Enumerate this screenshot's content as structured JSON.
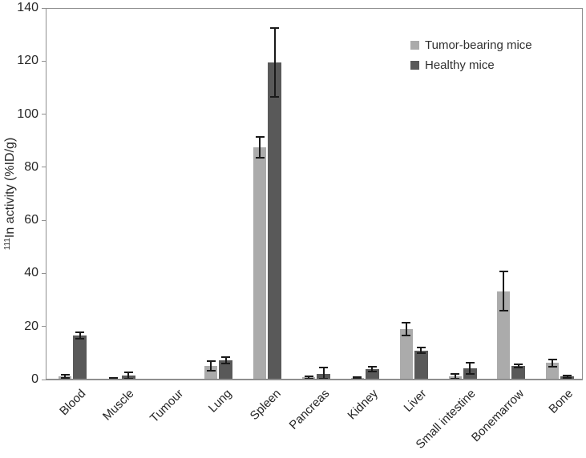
{
  "figure": {
    "background": "#ffffff"
  },
  "chart_data": {
    "type": "bar",
    "title": "",
    "xlabel": "",
    "ylabel_sup": "111",
    "ylabel_main": "In activity (%ID/g)",
    "ylim": [
      0,
      140
    ],
    "yticks": [
      0,
      20,
      40,
      60,
      80,
      100,
      120,
      140
    ],
    "grid": false,
    "legend_position": "top-right-inside",
    "error_bars": true,
    "categories": [
      "Blood",
      "Muscle",
      "Tumour",
      "Lung",
      "Spleen",
      "Pancreas",
      "Kidney",
      "Liver",
      "Small intestine",
      "Bonemarrow",
      "Bone"
    ],
    "series": [
      {
        "name": "Tumor-bearing mice",
        "color": "#ababab",
        "values": [
          1.2,
          0.3,
          0.3,
          5.2,
          87.5,
          0.8,
          0.7,
          19.0,
          1.2,
          33.3,
          6.2
        ],
        "errors": [
          0.7,
          0.4,
          0,
          1.8,
          4.0,
          0.4,
          0.3,
          2.5,
          0.8,
          7.4,
          1.4
        ]
      },
      {
        "name": "Healthy mice",
        "color": "#595959",
        "values": [
          16.5,
          1.5,
          0.1,
          7.2,
          119.5,
          2.1,
          3.9,
          11.0,
          4.2,
          5.2,
          1.1
        ],
        "errors": [
          1.2,
          1.3,
          0,
          1.2,
          13.0,
          2.3,
          1.0,
          1.1,
          2.1,
          0.6,
          0.35
        ]
      }
    ],
    "colors": {
      "axis": "#8f8f8f",
      "error_bar": "#1a1a1a",
      "text": "#262626"
    }
  }
}
